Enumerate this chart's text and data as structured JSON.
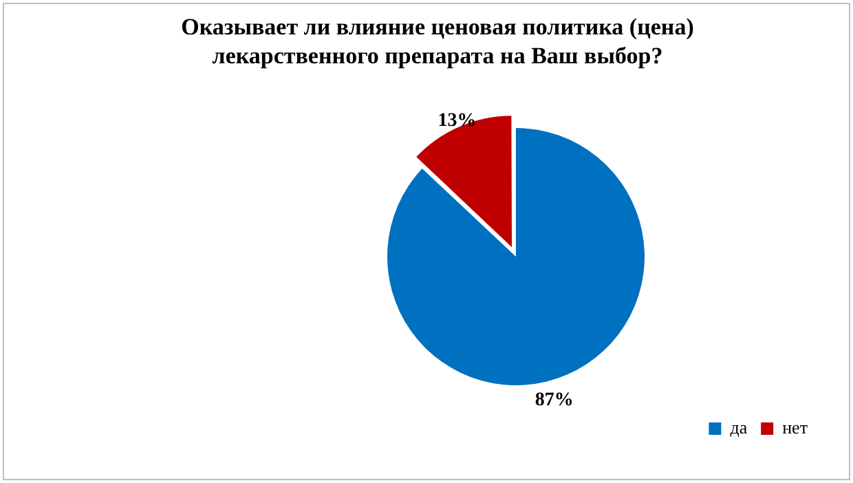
{
  "chart_data": {
    "type": "pie",
    "title": "Оказывает ли влияние ценовая политика (цена) лекарственного препарата на Ваш выбор?",
    "categories": [
      "да",
      "нет"
    ],
    "values": [
      87,
      13
    ],
    "colors": [
      "#0070c0",
      "#c00000"
    ],
    "value_labels": [
      "87%",
      "13%"
    ],
    "legend": "bottom right"
  }
}
